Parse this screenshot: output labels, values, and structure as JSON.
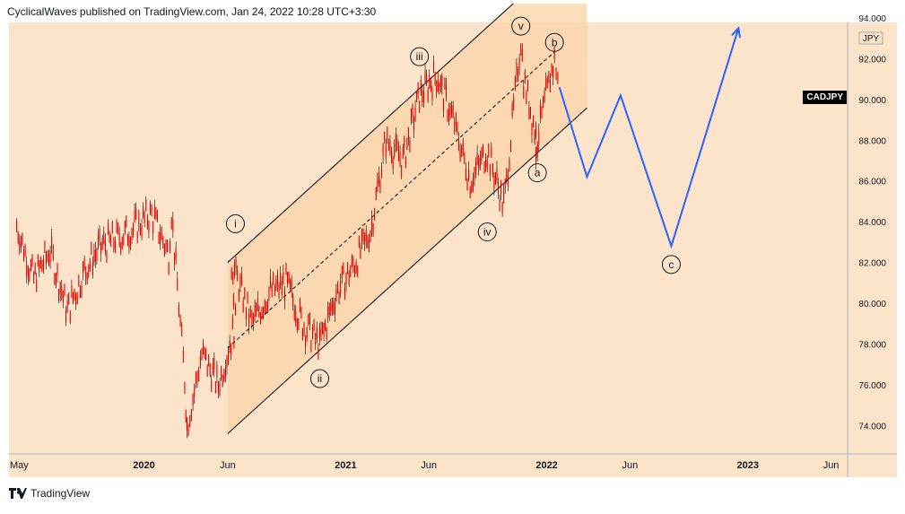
{
  "header": {
    "text": "CyclicalWaves published on TradingView.com, Jan 24, 2022 10:28 UTC+3:30"
  },
  "brand": {
    "label": "TradingView",
    "icon": "tradingview-logo-icon"
  },
  "symbol": {
    "name": "CADJPY",
    "currency": "JPY"
  },
  "colors": {
    "background": "#fce4cb",
    "channel_fill": "#fbd4ab",
    "candle": "#e00000",
    "wick": "#000000",
    "projection": "#2962ff",
    "channel_line": "#000000"
  },
  "chart_data": {
    "type": "line",
    "title": "",
    "ylabel": "JPY",
    "ylim": [
      73,
      94
    ],
    "y_ticks": [
      "74.000",
      "76.000",
      "78.000",
      "80.000",
      "82.000",
      "84.000",
      "86.000",
      "88.000",
      "90.000",
      "92.000",
      "94.000"
    ],
    "x_ticks": [
      "May",
      "2020",
      "Jun",
      "2021",
      "Jun",
      "2022",
      "Jun",
      "2023",
      "Jun"
    ],
    "series": [
      {
        "name": "CADJPY",
        "points": [
          [
            "2019-05",
            83.8
          ],
          [
            "2019-06",
            81.2
          ],
          [
            "2019-07",
            82.6
          ],
          [
            "2019-08",
            79.6
          ],
          [
            "2019-09",
            81.6
          ],
          [
            "2019-10",
            82.8
          ],
          [
            "2019-11",
            83.2
          ],
          [
            "2019-12",
            83.7
          ],
          [
            "2020-01",
            84.4
          ],
          [
            "2020-02",
            82.4
          ],
          [
            "2020-02-20",
            84.5
          ],
          [
            "2020-03",
            76.2
          ],
          [
            "2020-03-19",
            74.0
          ],
          [
            "2020-04",
            77.5
          ],
          [
            "2020-05",
            76.0
          ],
          [
            "2020-06",
            79.0
          ],
          [
            "2020-06-08",
            82.0
          ],
          [
            "2020-07",
            79.0
          ],
          [
            "2020-08",
            80.5
          ],
          [
            "2020-09",
            81.0
          ],
          [
            "2020-10",
            79.0
          ],
          [
            "2020-11",
            78.0
          ],
          [
            "2020-12",
            80.5
          ],
          [
            "2021-01",
            81.8
          ],
          [
            "2021-02",
            83.5
          ],
          [
            "2021-03",
            88.0
          ],
          [
            "2021-04",
            87.0
          ],
          [
            "2021-05",
            90.2
          ],
          [
            "2021-06",
            91.2
          ],
          [
            "2021-07",
            89.0
          ],
          [
            "2021-08",
            86.0
          ],
          [
            "2021-09",
            87.5
          ],
          [
            "2021-10",
            84.8
          ],
          [
            "2021-10-20",
            86.0
          ],
          [
            "2021-11",
            93.0
          ],
          [
            "2021-11-20",
            91.0
          ],
          [
            "2021-12",
            88.0
          ],
          [
            "2021-12-10",
            87.5
          ],
          [
            "2022-01",
            92.0
          ],
          [
            "2022-01-24",
            90.6
          ]
        ]
      },
      {
        "name": "",
        "points": [
          [
            "2022-01-24",
            90.6
          ],
          [
            "2022-03",
            86.2
          ],
          [
            "2022-05",
            90.2
          ],
          [
            "2022-08",
            82.8
          ],
          [
            "2022-12",
            93.5
          ]
        ]
      }
    ],
    "annotations": [
      {
        "label": "i",
        "x": "2020-06",
        "y": 83.9
      },
      {
        "label": "ii",
        "x": "2020-11",
        "y": 76.3
      },
      {
        "label": "iii",
        "x": "2021-05",
        "y": 92.1
      },
      {
        "label": "iv",
        "x": "2021-09",
        "y": 83.5
      },
      {
        "label": "v",
        "x": "2021-11",
        "y": 93.6
      },
      {
        "label": "b",
        "x": "2022-01",
        "y": 92.8
      },
      {
        "label": "a",
        "x": "2021-12",
        "y": 86.4
      },
      {
        "label": "c",
        "x": "2022-08",
        "y": 81.9
      }
    ],
    "grid": false,
    "legend": "none"
  }
}
